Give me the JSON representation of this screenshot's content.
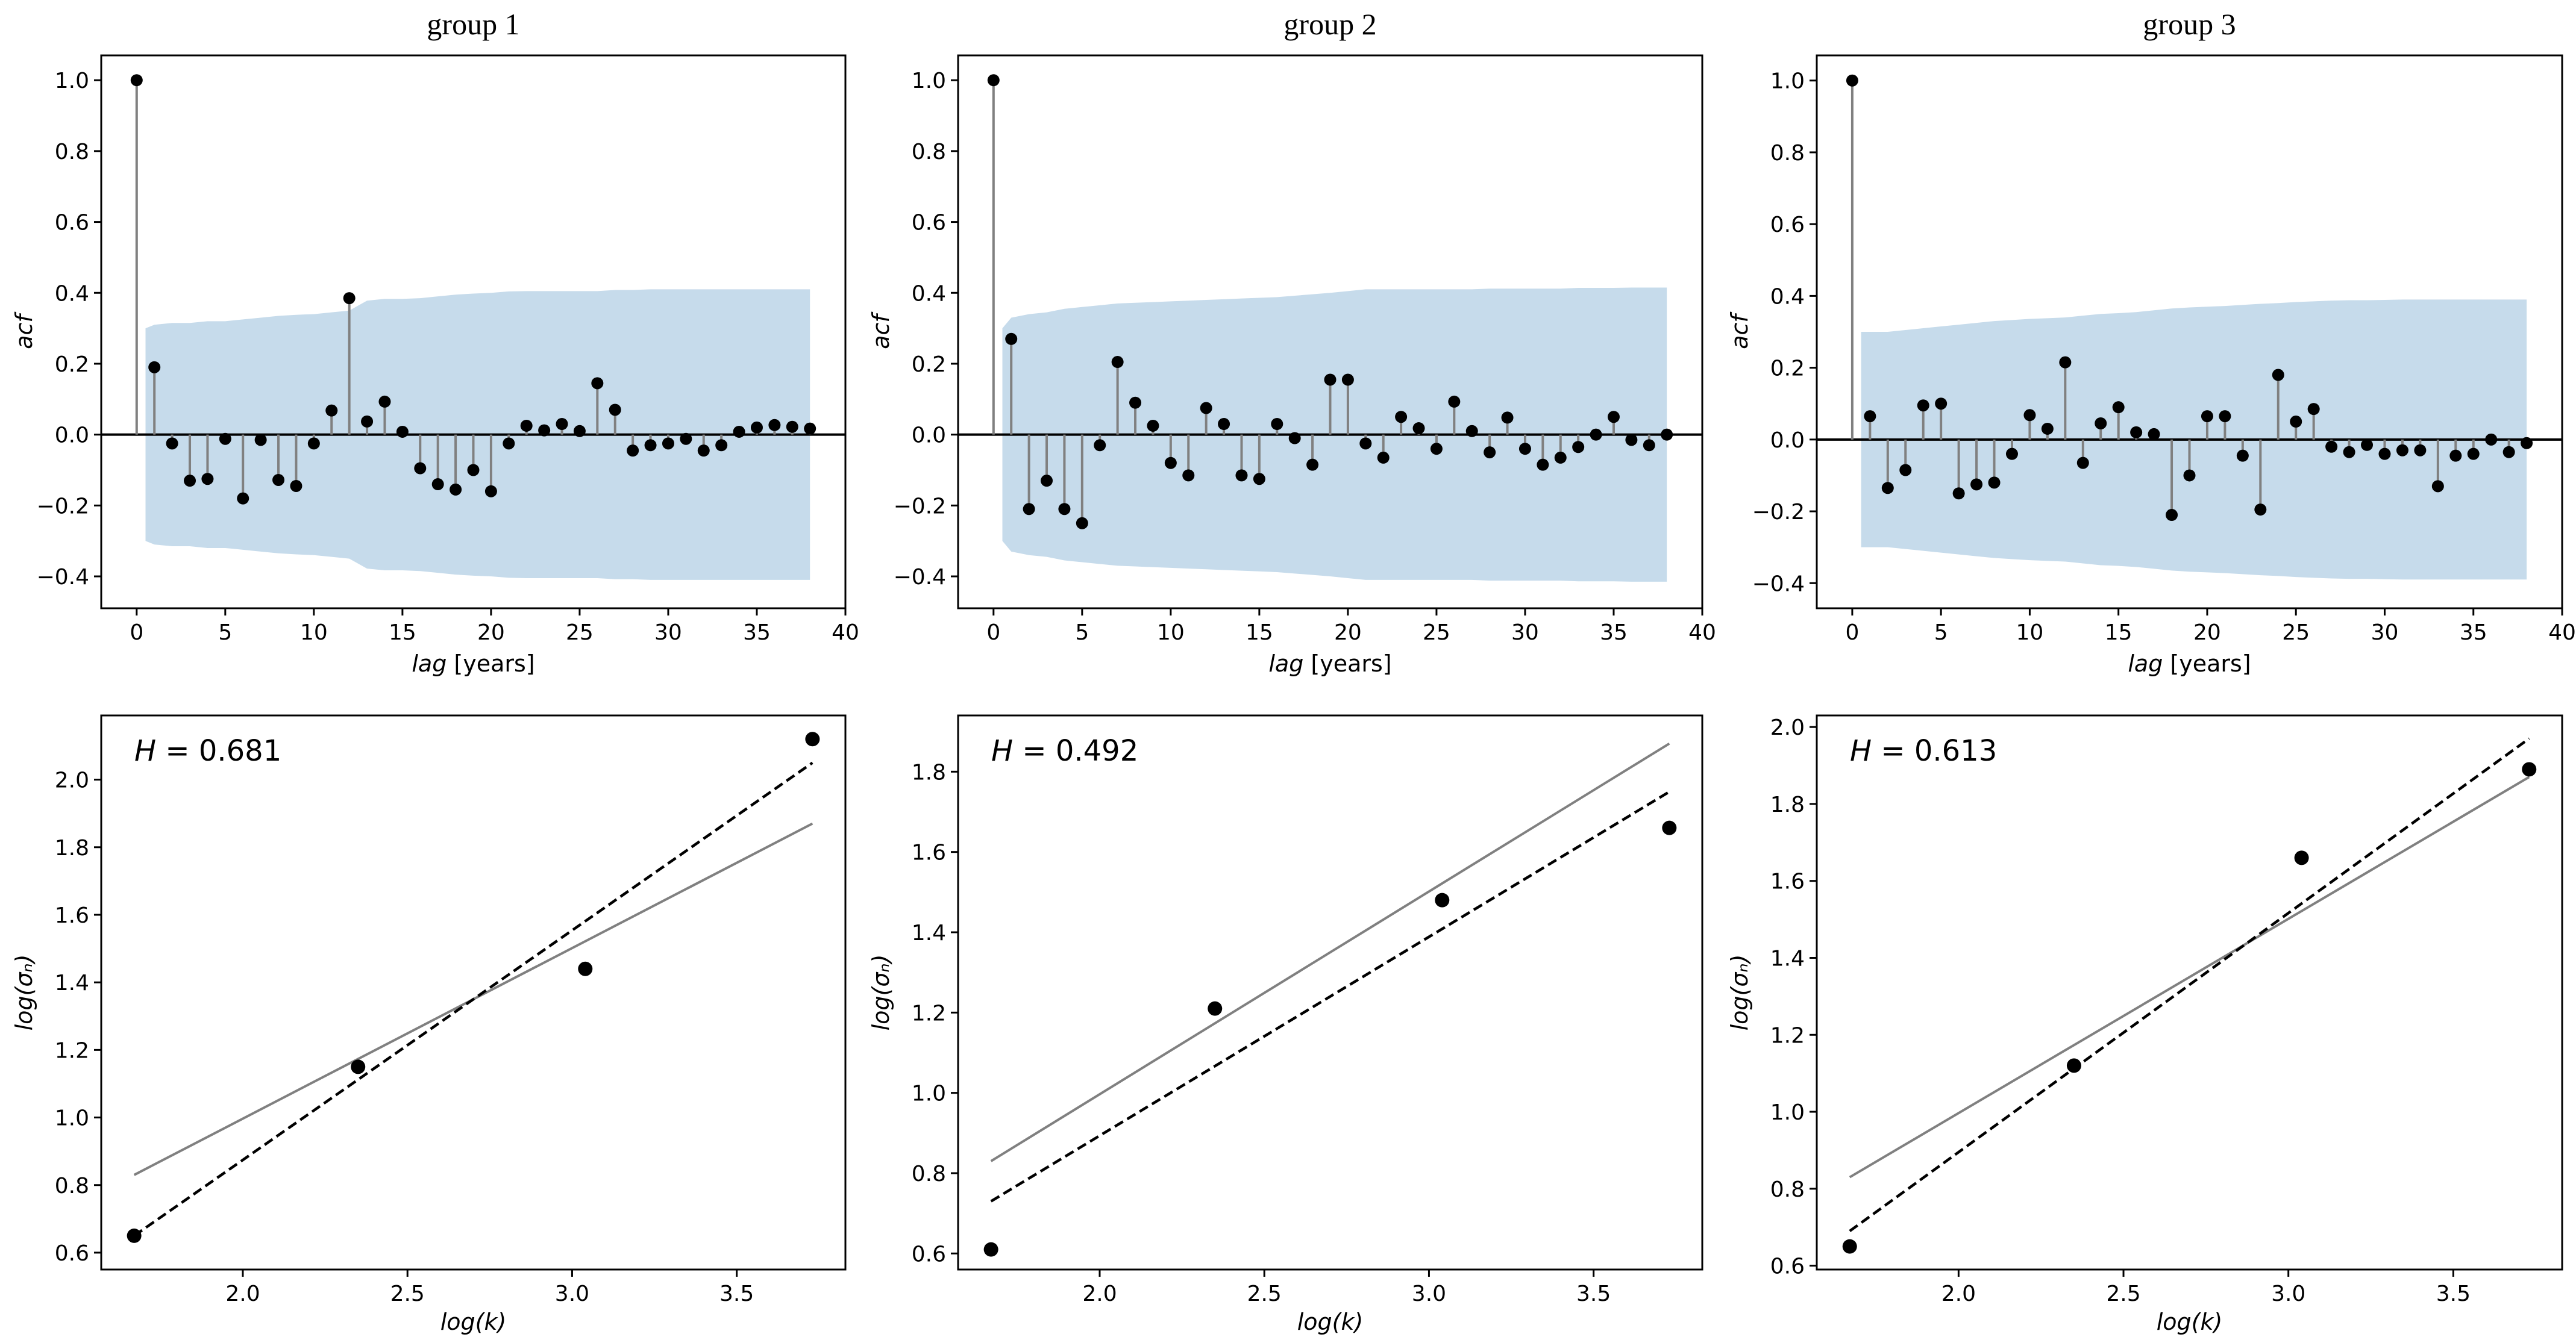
{
  "figure": {
    "colors": {
      "confidence_band": "#c6dbeb",
      "stem": "#808080",
      "marker": "#000000",
      "fit_line": "#808080",
      "dashed_line": "#000000"
    }
  },
  "chart_data": [
    {
      "type": "stem",
      "title": "group 1",
      "xlabel_italic": "lag",
      "xlabel_rest": " [years]",
      "ylabel": "acf",
      "xlim": [
        -2,
        40
      ],
      "ylim": [
        -0.49,
        1.07
      ],
      "xticks": [
        0,
        5,
        10,
        15,
        20,
        25,
        30,
        35,
        40
      ],
      "yticks": [
        -0.4,
        -0.2,
        0.0,
        0.2,
        0.4,
        0.6,
        0.8,
        1.0
      ],
      "lags": [
        0,
        1,
        2,
        3,
        4,
        5,
        6,
        7,
        8,
        9,
        10,
        11,
        12,
        13,
        14,
        15,
        16,
        17,
        18,
        19,
        20,
        21,
        22,
        23,
        24,
        25,
        26,
        27,
        28,
        29,
        30,
        31,
        32,
        33,
        34,
        35,
        36,
        37,
        38
      ],
      "values": [
        1.0,
        0.19,
        -0.025,
        -0.13,
        -0.125,
        -0.012,
        -0.18,
        -0.015,
        -0.128,
        -0.145,
        -0.025,
        0.068,
        0.385,
        0.037,
        0.093,
        0.008,
        -0.095,
        -0.14,
        -0.155,
        -0.1,
        -0.16,
        -0.025,
        0.025,
        0.012,
        0.03,
        0.01,
        0.145,
        0.07,
        -0.045,
        -0.03,
        -0.025,
        -0.012,
        -0.045,
        -0.03,
        0.008,
        0.02,
        0.027,
        0.022,
        0.017
      ],
      "confint_upper": [
        0.3,
        0.31,
        0.315,
        0.315,
        0.32,
        0.32,
        0.325,
        0.33,
        0.335,
        0.338,
        0.34,
        0.345,
        0.35,
        0.378,
        0.383,
        0.383,
        0.385,
        0.39,
        0.395,
        0.398,
        0.4,
        0.404,
        0.405,
        0.405,
        0.405,
        0.405,
        0.405,
        0.408,
        0.408,
        0.41,
        0.41,
        0.41,
        0.41,
        0.41,
        0.41,
        0.41,
        0.41,
        0.41,
        0.41
      ]
    },
    {
      "type": "stem",
      "title": "group 2",
      "xlabel_italic": "lag",
      "xlabel_rest": " [years]",
      "ylabel": "acf",
      "xlim": [
        -2,
        40
      ],
      "ylim": [
        -0.49,
        1.07
      ],
      "xticks": [
        0,
        5,
        10,
        15,
        20,
        25,
        30,
        35,
        40
      ],
      "yticks": [
        -0.4,
        -0.2,
        0.0,
        0.2,
        0.4,
        0.6,
        0.8,
        1.0
      ],
      "lags": [
        0,
        1,
        2,
        3,
        4,
        5,
        6,
        7,
        8,
        9,
        10,
        11,
        12,
        13,
        14,
        15,
        16,
        17,
        18,
        19,
        20,
        21,
        22,
        23,
        24,
        25,
        26,
        27,
        28,
        29,
        30,
        31,
        32,
        33,
        34,
        35,
        36,
        37,
        38
      ],
      "values": [
        1.0,
        0.27,
        -0.21,
        -0.13,
        -0.21,
        -0.25,
        -0.03,
        0.205,
        0.09,
        0.025,
        -0.08,
        -0.115,
        0.075,
        0.03,
        -0.115,
        -0.125,
        0.03,
        -0.01,
        -0.085,
        0.155,
        0.155,
        -0.025,
        -0.065,
        0.05,
        0.018,
        -0.04,
        0.093,
        0.01,
        -0.05,
        0.048,
        -0.04,
        -0.085,
        -0.065,
        -0.035,
        0.0,
        0.05,
        -0.015,
        -0.03,
        0.0
      ],
      "confint_upper": [
        0.3,
        0.33,
        0.34,
        0.345,
        0.355,
        0.36,
        0.365,
        0.37,
        0.372,
        0.374,
        0.376,
        0.378,
        0.38,
        0.382,
        0.384,
        0.386,
        0.388,
        0.392,
        0.396,
        0.4,
        0.405,
        0.41,
        0.41,
        0.41,
        0.41,
        0.41,
        0.41,
        0.41,
        0.412,
        0.412,
        0.412,
        0.412,
        0.412,
        0.414,
        0.414,
        0.414,
        0.415,
        0.415,
        0.415
      ]
    },
    {
      "type": "stem",
      "title": "group 3",
      "xlabel_italic": "lag",
      "xlabel_rest": " [years]",
      "ylabel": "acf",
      "xlim": [
        -2,
        40
      ],
      "ylim": [
        -0.47,
        1.07
      ],
      "xticks": [
        0,
        5,
        10,
        15,
        20,
        25,
        30,
        35,
        40
      ],
      "yticks": [
        -0.4,
        -0.2,
        0.0,
        0.2,
        0.4,
        0.6,
        0.8,
        1.0
      ],
      "lags": [
        0,
        1,
        2,
        3,
        4,
        5,
        6,
        7,
        8,
        9,
        10,
        11,
        12,
        13,
        14,
        15,
        16,
        17,
        18,
        19,
        20,
        21,
        22,
        23,
        24,
        25,
        26,
        27,
        28,
        29,
        30,
        31,
        32,
        33,
        34,
        35,
        36,
        37,
        38
      ],
      "values": [
        1.0,
        0.065,
        -0.135,
        -0.085,
        0.095,
        0.1,
        -0.15,
        -0.125,
        -0.12,
        -0.04,
        0.068,
        0.03,
        0.215,
        -0.065,
        0.045,
        0.09,
        0.02,
        0.015,
        -0.21,
        -0.1,
        0.065,
        0.065,
        -0.045,
        -0.195,
        0.18,
        0.05,
        0.085,
        -0.02,
        -0.035,
        -0.015,
        -0.04,
        -0.03,
        -0.03,
        -0.13,
        -0.045,
        -0.04,
        0.0,
        -0.035,
        -0.01
      ],
      "confint_upper": [
        0.3,
        0.3,
        0.3,
        0.305,
        0.31,
        0.315,
        0.32,
        0.325,
        0.33,
        0.333,
        0.336,
        0.338,
        0.34,
        0.345,
        0.35,
        0.352,
        0.355,
        0.36,
        0.365,
        0.368,
        0.37,
        0.372,
        0.375,
        0.378,
        0.38,
        0.383,
        0.385,
        0.387,
        0.388,
        0.388,
        0.389,
        0.39,
        0.39,
        0.39,
        0.39,
        0.39,
        0.39,
        0.39,
        0.39
      ]
    },
    {
      "type": "scatter",
      "annotation_italic": "H",
      "annotation_rest": " = 0.681",
      "xlabel": "log(k)",
      "ylabel": "log(σₙ)",
      "xlim": [
        1.57,
        3.83
      ],
      "ylim": [
        0.55,
        2.19
      ],
      "xticks": [
        2.0,
        2.5,
        3.0,
        3.5
      ],
      "yticks": [
        0.6,
        0.8,
        1.0,
        1.2,
        1.4,
        1.6,
        1.8,
        2.0
      ],
      "points": [
        {
          "x": 1.67,
          "y": 0.65
        },
        {
          "x": 2.35,
          "y": 1.15
        },
        {
          "x": 3.04,
          "y": 1.44
        },
        {
          "x": 3.73,
          "y": 2.12
        }
      ],
      "solid_line": [
        {
          "x": 1.67,
          "y": 0.83
        },
        {
          "x": 3.73,
          "y": 1.87
        }
      ],
      "dashed_line": [
        {
          "x": 1.67,
          "y": 0.65
        },
        {
          "x": 3.73,
          "y": 2.05
        }
      ]
    },
    {
      "type": "scatter",
      "annotation_italic": "H",
      "annotation_rest": " = 0.492",
      "xlabel": "log(k)",
      "ylabel": "log(σₙ)",
      "xlim": [
        1.57,
        3.83
      ],
      "ylim": [
        0.56,
        1.94
      ],
      "xticks": [
        2.0,
        2.5,
        3.0,
        3.5
      ],
      "yticks": [
        0.6,
        0.8,
        1.0,
        1.2,
        1.4,
        1.6,
        1.8
      ],
      "points": [
        {
          "x": 1.67,
          "y": 0.61
        },
        {
          "x": 2.35,
          "y": 1.21
        },
        {
          "x": 3.04,
          "y": 1.48
        },
        {
          "x": 3.73,
          "y": 1.66
        }
      ],
      "solid_line": [
        {
          "x": 1.67,
          "y": 0.83
        },
        {
          "x": 3.73,
          "y": 1.87
        }
      ],
      "dashed_line": [
        {
          "x": 1.67,
          "y": 0.73
        },
        {
          "x": 3.73,
          "y": 1.75
        }
      ]
    },
    {
      "type": "scatter",
      "annotation_italic": "H",
      "annotation_rest": " = 0.613",
      "xlabel": "log(k)",
      "ylabel": "log(σₙ)",
      "xlim": [
        1.57,
        3.83
      ],
      "ylim": [
        0.59,
        2.03
      ],
      "xticks": [
        2.0,
        2.5,
        3.0,
        3.5
      ],
      "yticks": [
        0.6,
        0.8,
        1.0,
        1.2,
        1.4,
        1.6,
        1.8,
        2.0
      ],
      "points": [
        {
          "x": 1.67,
          "y": 0.65
        },
        {
          "x": 2.35,
          "y": 1.12
        },
        {
          "x": 3.04,
          "y": 1.66
        },
        {
          "x": 3.73,
          "y": 1.89
        }
      ],
      "solid_line": [
        {
          "x": 1.67,
          "y": 0.83
        },
        {
          "x": 3.73,
          "y": 1.87
        }
      ],
      "dashed_line": [
        {
          "x": 1.67,
          "y": 0.69
        },
        {
          "x": 3.73,
          "y": 1.97
        }
      ]
    }
  ]
}
